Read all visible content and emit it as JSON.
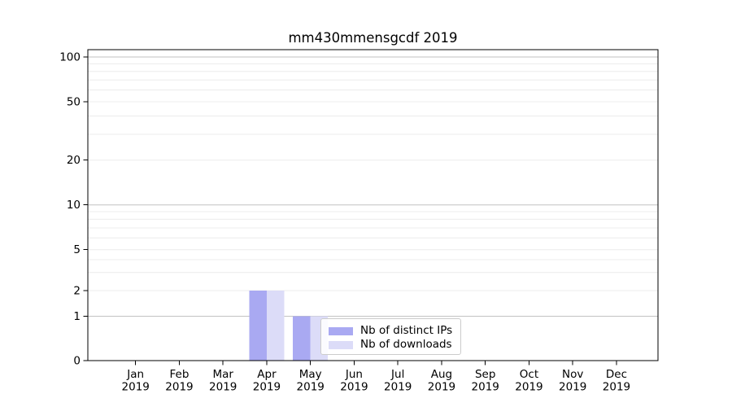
{
  "chart_data": {
    "type": "bar",
    "title": "mm430mmensgcdf 2019",
    "categories": [
      "Jan",
      "Feb",
      "Mar",
      "Apr",
      "May",
      "Jun",
      "Jul",
      "Aug",
      "Sep",
      "Oct",
      "Nov",
      "Dec"
    ],
    "category_year": "2019",
    "series": [
      {
        "name": "Nb of distinct IPs",
        "color": "#a9a9f2",
        "values": [
          0,
          0,
          0,
          2,
          1,
          0,
          0,
          0,
          0,
          0,
          0,
          0
        ]
      },
      {
        "name": "Nb of downloads",
        "color": "#dcdcf8",
        "values": [
          0,
          0,
          0,
          2,
          1,
          0,
          0,
          0,
          0,
          0,
          0,
          0
        ]
      }
    ],
    "y_ticks": [
      0,
      1,
      2,
      5,
      10,
      20,
      50,
      100
    ],
    "y_minor_gridlines": [
      3,
      4,
      6,
      7,
      8,
      9,
      30,
      40,
      60,
      70,
      80,
      90
    ],
    "ylim": [
      0,
      112
    ],
    "yscale": "symlog",
    "xlabel": "",
    "ylabel": "",
    "grid": "horizontal",
    "legend_position": "lower-center"
  },
  "colors": {
    "background": "#ffffff",
    "axis": "#000000",
    "grid_major": "#c2c2c2",
    "grid_minor": "#ececec",
    "tick_text": "#000000"
  }
}
